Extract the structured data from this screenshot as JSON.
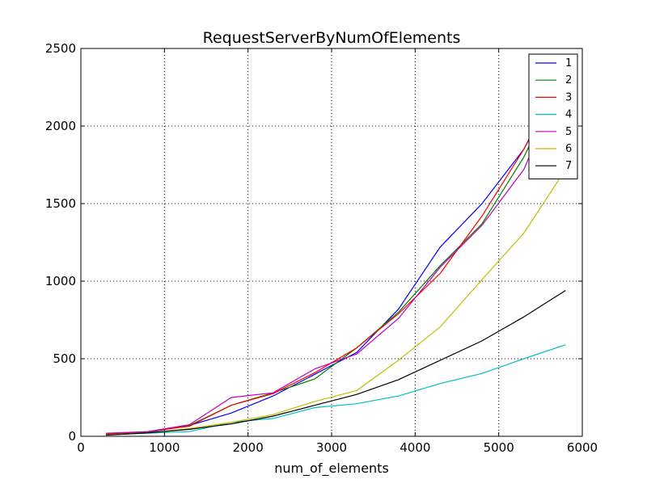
{
  "chart_data": {
    "type": "line",
    "title": "RequestServerByNumOfElements",
    "xlabel": "num_of_elements",
    "ylabel": "",
    "xlim": [
      0,
      6000
    ],
    "ylim": [
      0,
      2500
    ],
    "xticks": [
      0,
      1000,
      2000,
      3000,
      4000,
      5000,
      6000
    ],
    "yticks": [
      0,
      500,
      1000,
      1500,
      2000,
      2500
    ],
    "grid": true,
    "legend_position": "top-right",
    "x": [
      300,
      800,
      1300,
      1800,
      2300,
      2800,
      3300,
      3800,
      4300,
      4800,
      5300,
      5800
    ],
    "series": [
      {
        "name": "1",
        "color": "#0000ff",
        "values": [
          15,
          25,
          70,
          150,
          260,
          400,
          540,
          820,
          1220,
          1500,
          1850,
          2380
        ]
      },
      {
        "name": "2",
        "color": "#008000",
        "values": [
          12,
          28,
          70,
          200,
          280,
          370,
          570,
          800,
          1100,
          1370,
          1800,
          2350
        ]
      },
      {
        "name": "3",
        "color": "#ff0000",
        "values": [
          15,
          30,
          65,
          200,
          275,
          410,
          570,
          790,
          1050,
          1420,
          1850,
          2360
        ]
      },
      {
        "name": "4",
        "color": "#00bfbf",
        "values": [
          10,
          20,
          30,
          90,
          115,
          185,
          210,
          260,
          340,
          405,
          500,
          590
        ]
      },
      {
        "name": "5",
        "color": "#bf00bf",
        "values": [
          20,
          30,
          75,
          250,
          280,
          435,
          530,
          760,
          1090,
          1360,
          1720,
          2350
        ]
      },
      {
        "name": "6",
        "color": "#bfbf00",
        "values": [
          10,
          22,
          50,
          90,
          140,
          225,
          295,
          490,
          705,
          1010,
          1310,
          1720
        ]
      },
      {
        "name": "7",
        "color": "#000000",
        "values": [
          8,
          22,
          45,
          80,
          130,
          200,
          270,
          365,
          490,
          615,
          770,
          940
        ]
      }
    ]
  }
}
